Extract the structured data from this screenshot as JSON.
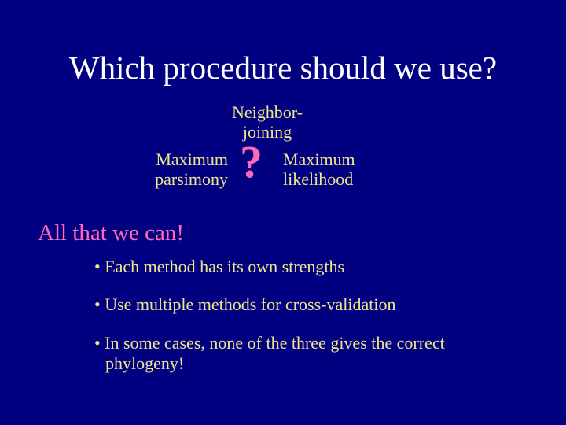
{
  "background_color": "#000080",
  "title": {
    "text": "Which procedure should we use?",
    "color": "#ffffff",
    "fontsize": 41
  },
  "methods": {
    "top": {
      "line1": "Neighbor-",
      "line2": "joining"
    },
    "left": {
      "line1": "Maximum",
      "line2": "parsimony"
    },
    "right": {
      "line1": "Maximum",
      "line2": "likelihood"
    },
    "color": "#f0e68c",
    "fontsize": 22
  },
  "question_mark": {
    "text": "?",
    "color": "#ff69b4",
    "fontsize": 58
  },
  "answer": {
    "text": "All that we can!",
    "color": "#ff69b4",
    "fontsize": 29
  },
  "bullets": {
    "items": [
      "• Each method has its own strengths",
      "• Use multiple methods for cross-validation",
      "• In some cases, none of the three gives the correct phylogeny!"
    ],
    "color": "#f0e68c",
    "fontsize": 22
  }
}
